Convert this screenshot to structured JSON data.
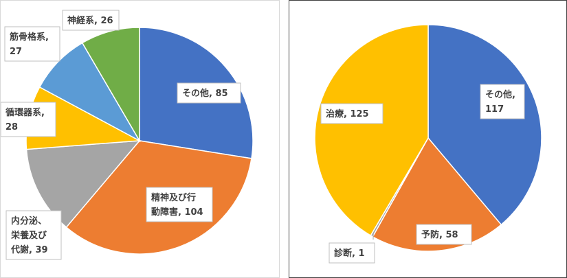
{
  "chart_data": [
    {
      "type": "pie",
      "title": "",
      "slices": [
        {
          "label": "その他",
          "value": 85,
          "color": "#4472C4",
          "text_lines": [
            "その他, 85"
          ]
        },
        {
          "label": "精神及び行動障害",
          "value": 104,
          "color": "#ED7D31",
          "text_lines": [
            "精神及び行",
            "動障害, 104"
          ]
        },
        {
          "label": "内分泌、栄養及び代謝",
          "value": 39,
          "color": "#A5A5A5",
          "text_lines": [
            "内分泌、",
            "栄養及び",
            "代謝, 39"
          ]
        },
        {
          "label": "循環器系",
          "value": 28,
          "color": "#FFC000",
          "text_lines": [
            "循環器系,",
            "28"
          ]
        },
        {
          "label": "筋骨格系",
          "value": 27,
          "color": "#5B9BD5",
          "text_lines": [
            "筋骨格系,",
            "27"
          ]
        },
        {
          "label": "神経系",
          "value": 26,
          "color": "#70AD47",
          "text_lines": [
            "神経系, 26"
          ]
        }
      ]
    },
    {
      "type": "pie",
      "title": "",
      "slices": [
        {
          "label": "その他",
          "value": 117,
          "color": "#4472C4",
          "text_lines": [
            "その他,",
            "117"
          ]
        },
        {
          "label": "予防",
          "value": 58,
          "color": "#ED7D31",
          "text_lines": [
            "予防, 58"
          ]
        },
        {
          "label": "診断",
          "value": 1,
          "color": "#A5A5A5",
          "text_lines": [
            "診断, 1"
          ]
        },
        {
          "label": "治療",
          "value": 125,
          "color": "#FFC000",
          "text_lines": [
            "治療, 125"
          ]
        }
      ]
    }
  ]
}
